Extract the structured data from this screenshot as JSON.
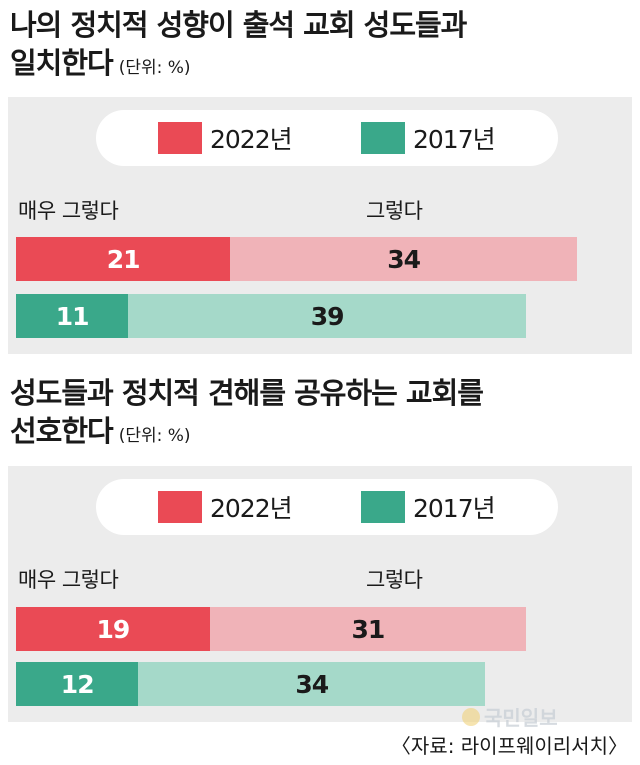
{
  "unit_label": "(단위: %)",
  "legend": {
    "y2022": {
      "label": "2022년",
      "color": "#ea4a55"
    },
    "y2017": {
      "label": "2017년",
      "color": "#3aa88a"
    }
  },
  "categories": [
    "매우 그렇다",
    "그렇다"
  ],
  "colors": {
    "very_2022": "#ea4a55",
    "agree_2022": "#f0b3b8",
    "very_2017": "#3aa88a",
    "agree_2017": "#a5d9c9"
  },
  "chart_data": [
    {
      "type": "bar",
      "orientation": "horizontal",
      "stacked": true,
      "title": "나의 정치적 성향이 출석 교회 성도들과 일치한다",
      "categories": [
        "2022년",
        "2017년"
      ],
      "series": [
        {
          "name": "매우 그렇다",
          "values": [
            21,
            11
          ]
        },
        {
          "name": "그렇다",
          "values": [
            34,
            39
          ]
        }
      ]
    },
    {
      "type": "bar",
      "orientation": "horizontal",
      "stacked": true,
      "title": "성도들과 정치적 견해를 공유하는 교회를 선호한다",
      "categories": [
        "2022년",
        "2017년"
      ],
      "series": [
        {
          "name": "매우 그렇다",
          "values": [
            19,
            12
          ]
        },
        {
          "name": "그렇다",
          "values": [
            31,
            34
          ]
        }
      ]
    }
  ],
  "titles": [
    {
      "line1": "나의 정치적 성향이 출석 교회 성도들과",
      "line2": "일치한다"
    },
    {
      "line1": "성도들과 정치적 견해를 공유하는 교회를",
      "line2": "선호한다"
    }
  ],
  "source": "〈자료: 라이프웨이리서치〉",
  "watermark": "국민일보"
}
